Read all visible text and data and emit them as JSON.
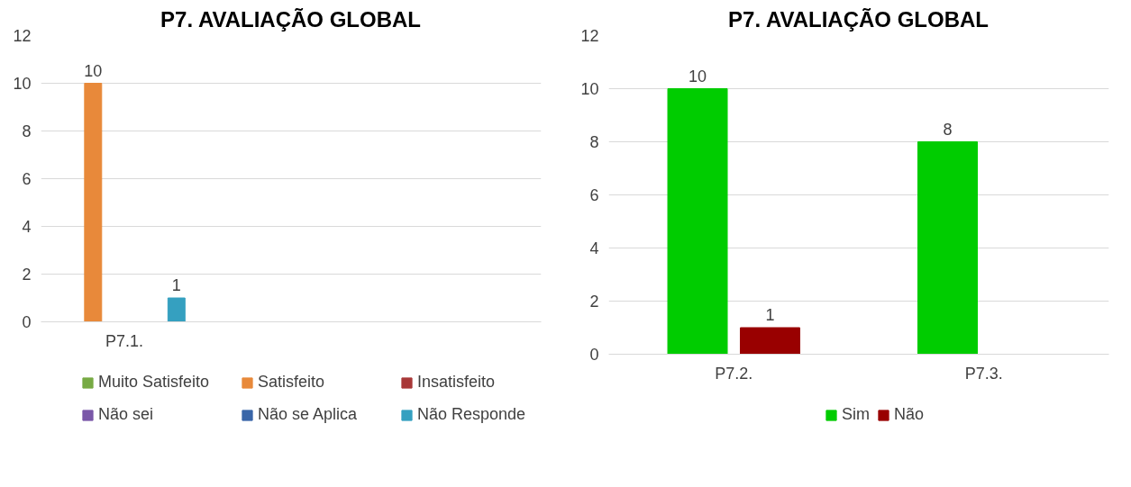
{
  "chart_data": [
    {
      "type": "bar",
      "title": "P7. AVALIAÇÃO GLOBAL",
      "categories": [
        "P7.1.",
        null,
        null
      ],
      "ylim": [
        0,
        12
      ],
      "yticks": [
        0,
        2,
        4,
        6,
        8,
        10,
        12
      ],
      "grid": "y",
      "legend": "bottom",
      "data_labels": true,
      "series": [
        {
          "name": "Muito Satisfeito",
          "color": "#77aa44",
          "values": [
            null,
            null,
            null
          ]
        },
        {
          "name": "Satisfeito",
          "color": "#e8893a",
          "values": [
            10,
            null,
            null
          ]
        },
        {
          "name": "Insatisfeito",
          "color": "#a83838",
          "values": [
            null,
            null,
            null
          ]
        },
        {
          "name": "Não sei",
          "color": "#7a58a8",
          "values": [
            null,
            null,
            null
          ]
        },
        {
          "name": "Não se Aplica",
          "color": "#3a66a8",
          "values": [
            null,
            null,
            null
          ]
        },
        {
          "name": "Não Responde",
          "color": "#35a0c0",
          "values": [
            1,
            null,
            null
          ]
        }
      ]
    },
    {
      "type": "bar",
      "title": "P7. AVALIAÇÃO GLOBAL",
      "categories": [
        "P7.2.",
        "P7.3."
      ],
      "ylim": [
        0,
        12
      ],
      "yticks": [
        0,
        2,
        4,
        6,
        8,
        10,
        12
      ],
      "grid": "y",
      "legend": "bottom",
      "data_labels": true,
      "series": [
        {
          "name": "Sim",
          "color": "#00cc00",
          "values": [
            10,
            8
          ]
        },
        {
          "name": "Não",
          "color": "#990000",
          "values": [
            1,
            null
          ]
        }
      ]
    }
  ]
}
